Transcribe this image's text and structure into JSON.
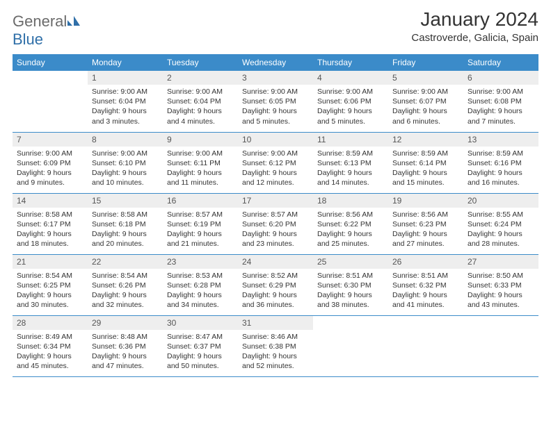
{
  "logo": {
    "text_gray": "General",
    "text_blue": "Blue"
  },
  "title": "January 2024",
  "location": "Castroverde, Galicia, Spain",
  "colors": {
    "header_bg": "#3b8bc9",
    "header_text": "#ffffff",
    "daynum_bg": "#eeeeee",
    "border": "#3b8bc9",
    "logo_gray": "#6b6b6b",
    "logo_blue": "#2f6fa8"
  },
  "weekdays": [
    "Sunday",
    "Monday",
    "Tuesday",
    "Wednesday",
    "Thursday",
    "Friday",
    "Saturday"
  ],
  "start_offset": 1,
  "days": [
    {
      "n": "1",
      "sunrise": "9:00 AM",
      "sunset": "6:04 PM",
      "day_h": "9",
      "day_m": "3"
    },
    {
      "n": "2",
      "sunrise": "9:00 AM",
      "sunset": "6:04 PM",
      "day_h": "9",
      "day_m": "4"
    },
    {
      "n": "3",
      "sunrise": "9:00 AM",
      "sunset": "6:05 PM",
      "day_h": "9",
      "day_m": "5"
    },
    {
      "n": "4",
      "sunrise": "9:00 AM",
      "sunset": "6:06 PM",
      "day_h": "9",
      "day_m": "5"
    },
    {
      "n": "5",
      "sunrise": "9:00 AM",
      "sunset": "6:07 PM",
      "day_h": "9",
      "day_m": "6"
    },
    {
      "n": "6",
      "sunrise": "9:00 AM",
      "sunset": "6:08 PM",
      "day_h": "9",
      "day_m": "7"
    },
    {
      "n": "7",
      "sunrise": "9:00 AM",
      "sunset": "6:09 PM",
      "day_h": "9",
      "day_m": "9"
    },
    {
      "n": "8",
      "sunrise": "9:00 AM",
      "sunset": "6:10 PM",
      "day_h": "9",
      "day_m": "10"
    },
    {
      "n": "9",
      "sunrise": "9:00 AM",
      "sunset": "6:11 PM",
      "day_h": "9",
      "day_m": "11"
    },
    {
      "n": "10",
      "sunrise": "9:00 AM",
      "sunset": "6:12 PM",
      "day_h": "9",
      "day_m": "12"
    },
    {
      "n": "11",
      "sunrise": "8:59 AM",
      "sunset": "6:13 PM",
      "day_h": "9",
      "day_m": "14"
    },
    {
      "n": "12",
      "sunrise": "8:59 AM",
      "sunset": "6:14 PM",
      "day_h": "9",
      "day_m": "15"
    },
    {
      "n": "13",
      "sunrise": "8:59 AM",
      "sunset": "6:16 PM",
      "day_h": "9",
      "day_m": "16"
    },
    {
      "n": "14",
      "sunrise": "8:58 AM",
      "sunset": "6:17 PM",
      "day_h": "9",
      "day_m": "18"
    },
    {
      "n": "15",
      "sunrise": "8:58 AM",
      "sunset": "6:18 PM",
      "day_h": "9",
      "day_m": "20"
    },
    {
      "n": "16",
      "sunrise": "8:57 AM",
      "sunset": "6:19 PM",
      "day_h": "9",
      "day_m": "21"
    },
    {
      "n": "17",
      "sunrise": "8:57 AM",
      "sunset": "6:20 PM",
      "day_h": "9",
      "day_m": "23"
    },
    {
      "n": "18",
      "sunrise": "8:56 AM",
      "sunset": "6:22 PM",
      "day_h": "9",
      "day_m": "25"
    },
    {
      "n": "19",
      "sunrise": "8:56 AM",
      "sunset": "6:23 PM",
      "day_h": "9",
      "day_m": "27"
    },
    {
      "n": "20",
      "sunrise": "8:55 AM",
      "sunset": "6:24 PM",
      "day_h": "9",
      "day_m": "28"
    },
    {
      "n": "21",
      "sunrise": "8:54 AM",
      "sunset": "6:25 PM",
      "day_h": "9",
      "day_m": "30"
    },
    {
      "n": "22",
      "sunrise": "8:54 AM",
      "sunset": "6:26 PM",
      "day_h": "9",
      "day_m": "32"
    },
    {
      "n": "23",
      "sunrise": "8:53 AM",
      "sunset": "6:28 PM",
      "day_h": "9",
      "day_m": "34"
    },
    {
      "n": "24",
      "sunrise": "8:52 AM",
      "sunset": "6:29 PM",
      "day_h": "9",
      "day_m": "36"
    },
    {
      "n": "25",
      "sunrise": "8:51 AM",
      "sunset": "6:30 PM",
      "day_h": "9",
      "day_m": "38"
    },
    {
      "n": "26",
      "sunrise": "8:51 AM",
      "sunset": "6:32 PM",
      "day_h": "9",
      "day_m": "41"
    },
    {
      "n": "27",
      "sunrise": "8:50 AM",
      "sunset": "6:33 PM",
      "day_h": "9",
      "day_m": "43"
    },
    {
      "n": "28",
      "sunrise": "8:49 AM",
      "sunset": "6:34 PM",
      "day_h": "9",
      "day_m": "45"
    },
    {
      "n": "29",
      "sunrise": "8:48 AM",
      "sunset": "6:36 PM",
      "day_h": "9",
      "day_m": "47"
    },
    {
      "n": "30",
      "sunrise": "8:47 AM",
      "sunset": "6:37 PM",
      "day_h": "9",
      "day_m": "50"
    },
    {
      "n": "31",
      "sunrise": "8:46 AM",
      "sunset": "6:38 PM",
      "day_h": "9",
      "day_m": "52"
    }
  ],
  "labels": {
    "sunrise": "Sunrise:",
    "sunset": "Sunset:",
    "daylight_prefix": "Daylight:",
    "hours_word": "hours",
    "and_word": "and",
    "minutes_word": "minutes."
  }
}
